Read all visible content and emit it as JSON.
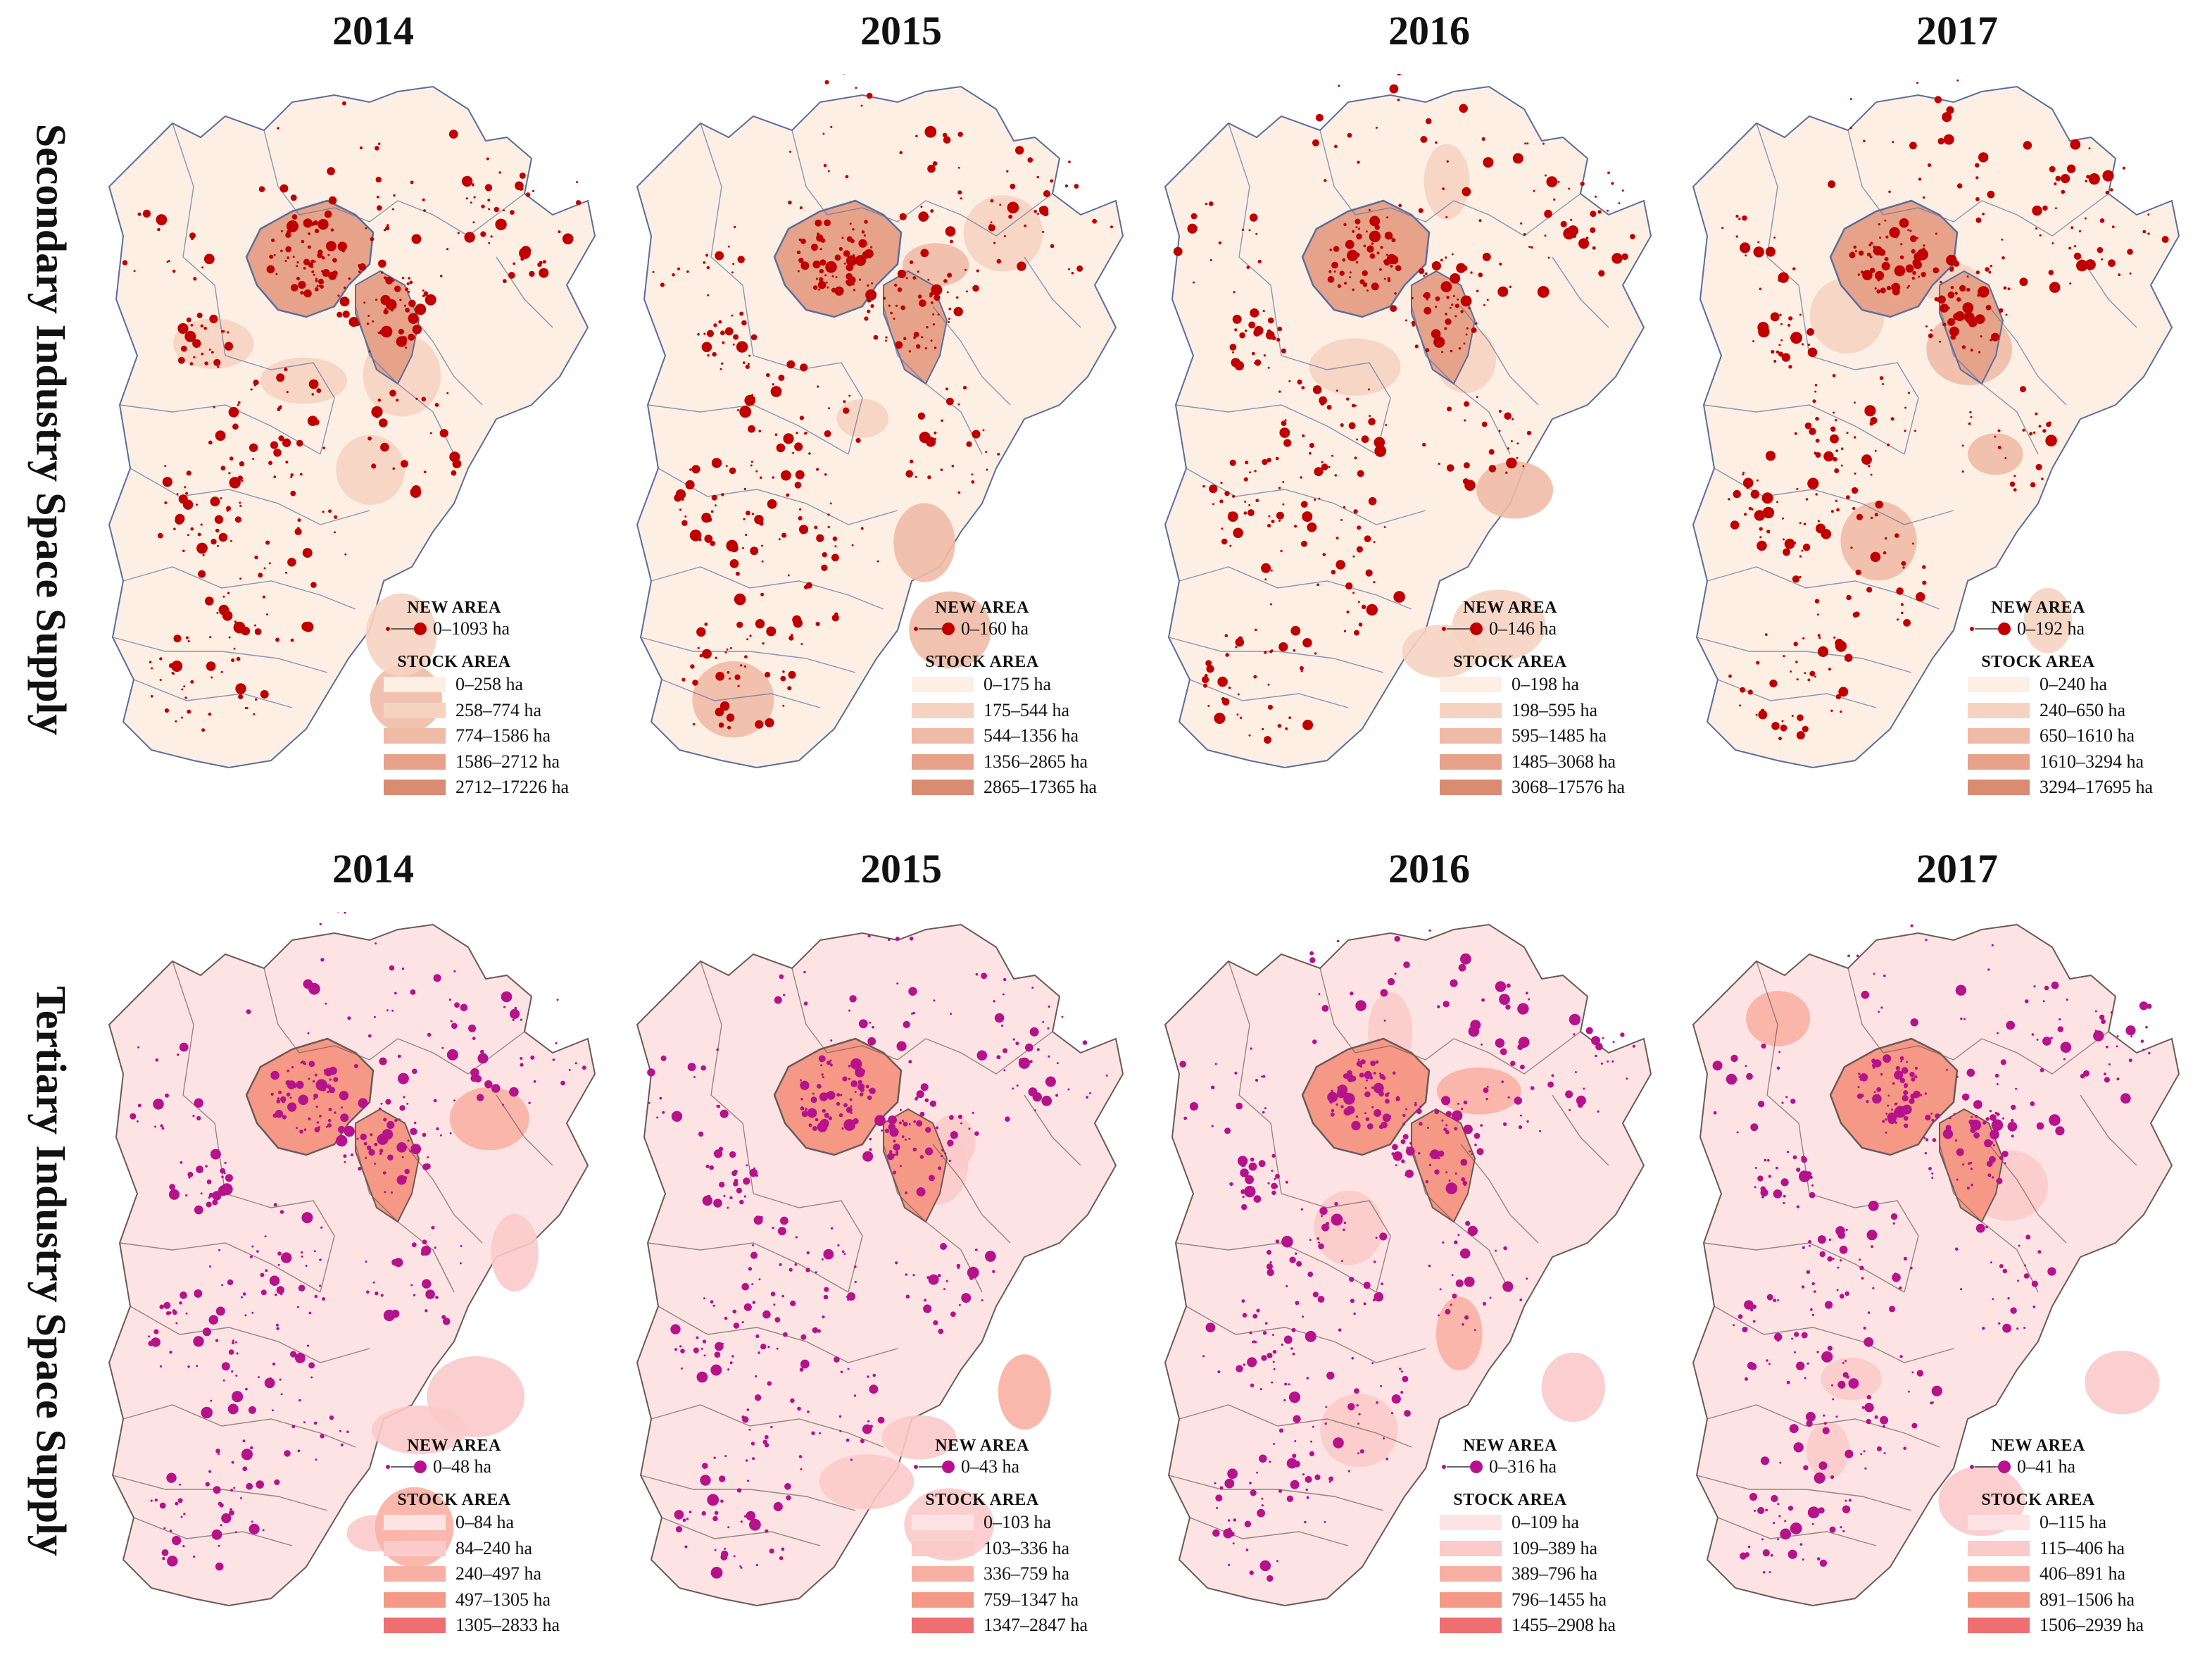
{
  "rows": [
    {
      "label": "Secondary Industry Space Supply",
      "theme": {
        "base": "#fdeee2",
        "dot": "#c00000",
        "border": "#5a6e9c",
        "stock_colors": [
          "#fdefe4",
          "#f6d3c1",
          "#efbba6",
          "#e6a38a",
          "#d98c72"
        ]
      },
      "panels": [
        {
          "year": "2014",
          "new_title": "NEW AREA",
          "new_range": "0–1093 ha",
          "stock_title": "STOCK AREA",
          "stock": [
            "0–258 ha",
            "258–774 ha",
            "774–1586 ha",
            "1586–2712 ha",
            "2712–17226 ha"
          ]
        },
        {
          "year": "2015",
          "new_title": "NEW AREA",
          "new_range": "0–160 ha",
          "stock_title": "STOCK AREA",
          "stock": [
            "0–175 ha",
            "175–544 ha",
            "544–1356 ha",
            "1356–2865 ha",
            "2865–17365 ha"
          ]
        },
        {
          "year": "2016",
          "new_title": "NEW AREA",
          "new_range": "0–146 ha",
          "stock_title": "STOCK AREA",
          "stock": [
            "0–198 ha",
            "198–595 ha",
            "595–1485 ha",
            "1485–3068 ha",
            "3068–17576 ha"
          ]
        },
        {
          "year": "2017",
          "new_title": "NEW AREA",
          "new_range": "0–192 ha",
          "stock_title": "STOCK AREA",
          "stock": [
            "0–240 ha",
            "240–650 ha",
            "650–1610 ha",
            "1610–3294 ha",
            "3294–17695 ha"
          ]
        }
      ]
    },
    {
      "label": "Tertiary Industry Space Supply",
      "theme": {
        "base": "#fde0e0",
        "dot": "#b5128c",
        "border": "#6b5a5a",
        "stock_colors": [
          "#fde3e3",
          "#fbcaca",
          "#f9b0a4",
          "#f59885",
          "#ee6f6f"
        ]
      },
      "panels": [
        {
          "year": "2014",
          "new_title": "NEW AREA",
          "new_range": "0–48 ha",
          "stock_title": "STOCK AREA",
          "stock": [
            "0–84 ha",
            "84–240 ha",
            "240–497 ha",
            "497–1305 ha",
            "1305–2833 ha"
          ]
        },
        {
          "year": "2015",
          "new_title": "NEW AREA",
          "new_range": "0–43 ha",
          "stock_title": "STOCK AREA",
          "stock": [
            "0–103 ha",
            "103–336 ha",
            "336–759 ha",
            "759–1347 ha",
            "1347–2847 ha"
          ]
        },
        {
          "year": "2016",
          "new_title": "NEW AREA",
          "new_range": "0–316 ha",
          "stock_title": "STOCK AREA",
          "stock": [
            "0–109 ha",
            "109–389 ha",
            "389–796 ha",
            "796–1455 ha",
            "1455–2908 ha"
          ]
        },
        {
          "year": "2017",
          "new_title": "NEW AREA",
          "new_range": "0–41 ha",
          "stock_title": "STOCK AREA",
          "stock": [
            "0–115 ha",
            "115–406 ha",
            "406–891 ha",
            "891–1506 ha",
            "1506–2939 ha"
          ]
        }
      ]
    }
  ]
}
